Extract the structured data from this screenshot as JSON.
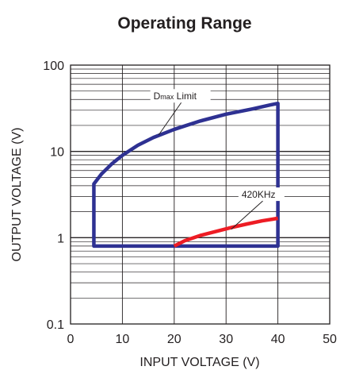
{
  "chart_data": {
    "type": "line",
    "title": "Operating Range",
    "xlabel": "INPUT VOLTAGE (V)",
    "ylabel": "OUTPUT VOLTAGE (V)",
    "xlim": [
      0,
      50
    ],
    "ylim": [
      0.1,
      100
    ],
    "y_scale": "log",
    "grid": true,
    "x_ticks": [
      "0",
      "10",
      "20",
      "30",
      "40",
      "50"
    ],
    "y_ticks": [
      {
        "value": 0.1,
        "label": "0.1"
      },
      {
        "value": 1,
        "label": "1"
      },
      {
        "value": 10,
        "label": "10"
      },
      {
        "value": 100,
        "label": "100"
      }
    ],
    "series": [
      {
        "name": "Dmax Limit",
        "color": "#2e3192",
        "x": [
          4.5,
          4.5,
          6,
          8,
          10,
          13,
          16,
          20,
          25,
          30,
          35,
          38.5,
          40,
          40,
          4.5,
          4.5
        ],
        "y": [
          0.8,
          4.2,
          5.5,
          7.2,
          9.0,
          11.8,
          14.5,
          18.0,
          22.5,
          27.0,
          31.0,
          34.5,
          36.0,
          0.8,
          0.8,
          4.2
        ]
      },
      {
        "name": "420KHz",
        "color": "#ed1c24",
        "x": [
          20,
          22,
          25,
          28,
          31,
          34,
          37,
          39,
          40
        ],
        "y": [
          0.8,
          0.92,
          1.06,
          1.18,
          1.31,
          1.44,
          1.57,
          1.64,
          1.68
        ]
      }
    ],
    "annotations": [
      {
        "text_main": "D",
        "text_sub": "max",
        "text_rest": " Limit",
        "series": "Dmax Limit",
        "at": [
          17,
          15.5
        ],
        "label_at": [
          16,
          40
        ]
      },
      {
        "text": "420KHz",
        "series": "420KHz",
        "at": [
          31,
          1.25
        ],
        "label_at": [
          33,
          2.9
        ]
      }
    ]
  }
}
